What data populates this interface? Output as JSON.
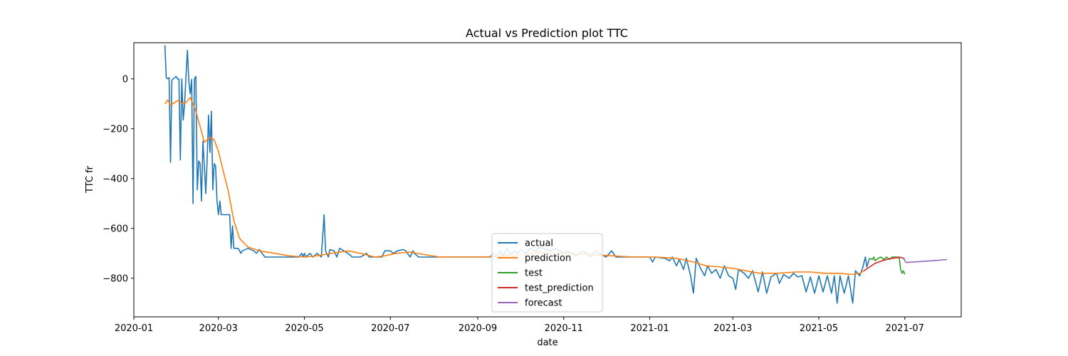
{
  "chart_data": {
    "type": "line",
    "title": "Actual vs Prediction plot TTC",
    "xlabel": "date",
    "ylabel": "TTC fr",
    "x_ticks": [
      "2020-01",
      "2020-03",
      "2020-05",
      "2020-07",
      "2020-09",
      "2020-11",
      "2021-01",
      "2021-03",
      "2021-05",
      "2021-07"
    ],
    "y_ticks": [
      0,
      -200,
      -400,
      -600,
      -800
    ],
    "xlim": [
      "2020-01-01",
      "2021-08-10"
    ],
    "ylim": [
      -955,
      145
    ],
    "grid": false,
    "legend_position": "bottom-center",
    "series": [
      {
        "name": "actual",
        "color": "#1f77b4",
        "points": [
          [
            "2020-01-23",
            135
          ],
          [
            "2020-01-24",
            5
          ],
          [
            "2020-01-25",
            0
          ],
          [
            "2020-01-26",
            5
          ],
          [
            "2020-01-27",
            -335
          ],
          [
            "2020-01-28",
            -5
          ],
          [
            "2020-01-29",
            0
          ],
          [
            "2020-01-31",
            10
          ],
          [
            "2020-02-01",
            0
          ],
          [
            "2020-02-02",
            0
          ],
          [
            "2020-02-03",
            -325
          ],
          [
            "2020-02-04",
            0
          ],
          [
            "2020-02-05",
            -165
          ],
          [
            "2020-02-06",
            -100
          ],
          [
            "2020-02-07",
            10
          ],
          [
            "2020-02-08",
            115
          ],
          [
            "2020-02-09",
            -10
          ],
          [
            "2020-02-10",
            -60
          ],
          [
            "2020-02-11",
            -2
          ],
          [
            "2020-02-12",
            -500
          ],
          [
            "2020-02-13",
            0
          ],
          [
            "2020-02-14",
            10
          ],
          [
            "2020-02-15",
            -445
          ],
          [
            "2020-02-16",
            -330
          ],
          [
            "2020-02-17",
            -340
          ],
          [
            "2020-02-18",
            -490
          ],
          [
            "2020-02-19",
            -250
          ],
          [
            "2020-02-20",
            -350
          ],
          [
            "2020-02-21",
            -460
          ],
          [
            "2020-02-22",
            -330
          ],
          [
            "2020-02-23",
            -145
          ],
          [
            "2020-02-24",
            -295
          ],
          [
            "2020-02-25",
            -130
          ],
          [
            "2020-02-26",
            -445
          ],
          [
            "2020-02-27",
            -340
          ],
          [
            "2020-02-28",
            -350
          ],
          [
            "2020-02-29",
            -490
          ],
          [
            "2020-03-01",
            -545
          ],
          [
            "2020-03-02",
            -490
          ],
          [
            "2020-03-03",
            -545
          ],
          [
            "2020-03-06",
            -545
          ],
          [
            "2020-03-09",
            -545
          ],
          [
            "2020-03-10",
            -680
          ],
          [
            "2020-03-11",
            -590
          ],
          [
            "2020-03-12",
            -680
          ],
          [
            "2020-03-15",
            -680
          ],
          [
            "2020-03-16",
            -690
          ],
          [
            "2020-03-17",
            -700
          ],
          [
            "2020-03-18",
            -690
          ],
          [
            "2020-03-22",
            -680
          ],
          [
            "2020-03-26",
            -690
          ],
          [
            "2020-03-28",
            -700
          ],
          [
            "2020-03-30",
            -685
          ],
          [
            "2020-04-01",
            -700
          ],
          [
            "2020-04-03",
            -715
          ],
          [
            "2020-04-10",
            -715
          ],
          [
            "2020-04-20",
            -715
          ],
          [
            "2020-04-27",
            -715
          ],
          [
            "2020-04-29",
            -700
          ],
          [
            "2020-04-30",
            -715
          ],
          [
            "2020-05-01",
            -700
          ],
          [
            "2020-05-02",
            -715
          ],
          [
            "2020-05-05",
            -700
          ],
          [
            "2020-05-07",
            -715
          ],
          [
            "2020-05-10",
            -700
          ],
          [
            "2020-05-13",
            -715
          ],
          [
            "2020-05-15",
            -545
          ],
          [
            "2020-05-16",
            -690
          ],
          [
            "2020-05-18",
            -715
          ],
          [
            "2020-05-19",
            -685
          ],
          [
            "2020-05-22",
            -690
          ],
          [
            "2020-05-24",
            -715
          ],
          [
            "2020-05-26",
            -680
          ],
          [
            "2020-05-29",
            -690
          ],
          [
            "2020-06-01",
            -700
          ],
          [
            "2020-06-04",
            -715
          ],
          [
            "2020-06-10",
            -715
          ],
          [
            "2020-06-14",
            -700
          ],
          [
            "2020-06-16",
            -715
          ],
          [
            "2020-06-25",
            -715
          ],
          [
            "2020-06-27",
            -690
          ],
          [
            "2020-07-01",
            -690
          ],
          [
            "2020-07-03",
            -700
          ],
          [
            "2020-07-06",
            -690
          ],
          [
            "2020-07-10",
            -685
          ],
          [
            "2020-07-12",
            -690
          ],
          [
            "2020-07-15",
            -715
          ],
          [
            "2020-07-17",
            -690
          ],
          [
            "2020-07-18",
            -700
          ],
          [
            "2020-07-21",
            -715
          ],
          [
            "2020-08-01",
            -715
          ],
          [
            "2020-08-20",
            -715
          ],
          [
            "2020-09-01",
            -715
          ],
          [
            "2020-09-10",
            -715
          ],
          [
            "2020-09-12",
            -700
          ],
          [
            "2020-09-14",
            -715
          ],
          [
            "2020-09-17",
            -690
          ],
          [
            "2020-09-19",
            -710
          ],
          [
            "2020-09-22",
            -680
          ],
          [
            "2020-09-24",
            -705
          ],
          [
            "2020-09-27",
            -690
          ],
          [
            "2020-09-29",
            -700
          ],
          [
            "2020-10-02",
            -685
          ],
          [
            "2020-10-05",
            -700
          ],
          [
            "2020-10-08",
            -680
          ],
          [
            "2020-10-12",
            -690
          ],
          [
            "2020-10-15",
            -675
          ],
          [
            "2020-10-19",
            -685
          ],
          [
            "2020-10-23",
            -690
          ],
          [
            "2020-10-26",
            -680
          ],
          [
            "2020-10-29",
            -690
          ],
          [
            "2020-11-01",
            -700
          ],
          [
            "2020-11-03",
            -690
          ],
          [
            "2020-11-06",
            -700
          ],
          [
            "2020-11-10",
            -710
          ],
          [
            "2020-11-14",
            -690
          ],
          [
            "2020-11-17",
            -700
          ],
          [
            "2020-11-20",
            -715
          ],
          [
            "2020-11-23",
            -690
          ],
          [
            "2020-11-26",
            -700
          ],
          [
            "2020-12-01",
            -715
          ],
          [
            "2020-12-05",
            -690
          ],
          [
            "2020-12-08",
            -715
          ],
          [
            "2020-12-15",
            -715
          ],
          [
            "2020-12-25",
            -715
          ],
          [
            "2021-01-01",
            -715
          ],
          [
            "2021-01-03",
            -735
          ],
          [
            "2021-01-05",
            -715
          ],
          [
            "2021-01-12",
            -720
          ],
          [
            "2021-01-15",
            -730
          ],
          [
            "2021-01-17",
            -715
          ],
          [
            "2021-01-20",
            -750
          ],
          [
            "2021-01-22",
            -725
          ],
          [
            "2021-01-25",
            -765
          ],
          [
            "2021-01-27",
            -720
          ],
          [
            "2021-01-30",
            -790
          ],
          [
            "2021-02-01",
            -860
          ],
          [
            "2021-02-03",
            -720
          ],
          [
            "2021-02-06",
            -760
          ],
          [
            "2021-02-09",
            -790
          ],
          [
            "2021-02-11",
            -750
          ],
          [
            "2021-02-14",
            -780
          ],
          [
            "2021-02-17",
            -765
          ],
          [
            "2021-02-20",
            -800
          ],
          [
            "2021-02-23",
            -750
          ],
          [
            "2021-02-26",
            -790
          ],
          [
            "2021-03-01",
            -800
          ],
          [
            "2021-03-03",
            -845
          ],
          [
            "2021-03-05",
            -765
          ],
          [
            "2021-03-09",
            -780
          ],
          [
            "2021-03-12",
            -800
          ],
          [
            "2021-03-15",
            -770
          ],
          [
            "2021-03-19",
            -855
          ],
          [
            "2021-03-22",
            -775
          ],
          [
            "2021-03-25",
            -860
          ],
          [
            "2021-03-28",
            -795
          ],
          [
            "2021-04-01",
            -780
          ],
          [
            "2021-04-03",
            -820
          ],
          [
            "2021-04-06",
            -785
          ],
          [
            "2021-04-10",
            -800
          ],
          [
            "2021-04-13",
            -780
          ],
          [
            "2021-04-16",
            -795
          ],
          [
            "2021-04-19",
            -790
          ],
          [
            "2021-04-22",
            -855
          ],
          [
            "2021-04-25",
            -795
          ],
          [
            "2021-04-28",
            -860
          ],
          [
            "2021-05-01",
            -790
          ],
          [
            "2021-05-04",
            -855
          ],
          [
            "2021-05-07",
            -790
          ],
          [
            "2021-05-10",
            -860
          ],
          [
            "2021-05-12",
            -790
          ],
          [
            "2021-05-14",
            -900
          ],
          [
            "2021-05-16",
            -790
          ],
          [
            "2021-05-19",
            -860
          ],
          [
            "2021-05-22",
            -790
          ],
          [
            "2021-05-25",
            -900
          ],
          [
            "2021-05-27",
            -770
          ],
          [
            "2021-05-30",
            -790
          ],
          [
            "2021-06-01",
            -760
          ],
          [
            "2021-06-03",
            -715
          ],
          [
            "2021-06-04",
            -755
          ],
          [
            "2021-06-06",
            -720
          ]
        ]
      },
      {
        "name": "prediction",
        "color": "#ff7f0e",
        "points": [
          [
            "2020-01-23",
            -100
          ],
          [
            "2020-01-25",
            -85
          ],
          [
            "2020-01-27",
            -105
          ],
          [
            "2020-01-30",
            -95
          ],
          [
            "2020-02-02",
            -85
          ],
          [
            "2020-02-04",
            -100
          ],
          [
            "2020-02-07",
            -95
          ],
          [
            "2020-02-10",
            -75
          ],
          [
            "2020-02-12",
            -100
          ],
          [
            "2020-02-14",
            -130
          ],
          [
            "2020-02-17",
            -190
          ],
          [
            "2020-02-20",
            -255
          ],
          [
            "2020-02-22",
            -245
          ],
          [
            "2020-02-24",
            -235
          ],
          [
            "2020-02-27",
            -245
          ],
          [
            "2020-03-01",
            -290
          ],
          [
            "2020-03-04",
            -360
          ],
          [
            "2020-03-08",
            -450
          ],
          [
            "2020-03-12",
            -570
          ],
          [
            "2020-03-16",
            -640
          ],
          [
            "2020-03-22",
            -675
          ],
          [
            "2020-03-30",
            -690
          ],
          [
            "2020-04-10",
            -700
          ],
          [
            "2020-04-20",
            -710
          ],
          [
            "2020-05-01",
            -715
          ],
          [
            "2020-05-10",
            -710
          ],
          [
            "2020-05-20",
            -700
          ],
          [
            "2020-06-01",
            -690
          ],
          [
            "2020-06-10",
            -700
          ],
          [
            "2020-06-20",
            -715
          ],
          [
            "2020-06-27",
            -710
          ],
          [
            "2020-07-05",
            -700
          ],
          [
            "2020-07-15",
            -695
          ],
          [
            "2020-07-25",
            -705
          ],
          [
            "2020-08-05",
            -715
          ],
          [
            "2020-08-20",
            -715
          ],
          [
            "2020-09-05",
            -715
          ],
          [
            "2020-09-20",
            -710
          ],
          [
            "2020-10-01",
            -705
          ],
          [
            "2020-10-15",
            -695
          ],
          [
            "2020-10-25",
            -700
          ],
          [
            "2020-11-05",
            -700
          ],
          [
            "2020-11-20",
            -705
          ],
          [
            "2020-12-05",
            -710
          ],
          [
            "2020-12-20",
            -715
          ],
          [
            "2021-01-05",
            -715
          ],
          [
            "2021-01-20",
            -720
          ],
          [
            "2021-02-01",
            -735
          ],
          [
            "2021-02-10",
            -750
          ],
          [
            "2021-02-20",
            -755
          ],
          [
            "2021-03-01",
            -760
          ],
          [
            "2021-03-10",
            -770
          ],
          [
            "2021-03-20",
            -780
          ],
          [
            "2021-04-01",
            -780
          ],
          [
            "2021-04-15",
            -775
          ],
          [
            "2021-04-25",
            -775
          ],
          [
            "2021-05-05",
            -780
          ],
          [
            "2021-05-15",
            -780
          ],
          [
            "2021-05-25",
            -785
          ],
          [
            "2021-05-30",
            -780
          ],
          [
            "2021-06-02",
            -770
          ]
        ]
      },
      {
        "name": "test",
        "color": "#2ca02c",
        "points": [
          [
            "2021-06-06",
            -720
          ],
          [
            "2021-06-08",
            -725
          ],
          [
            "2021-06-09",
            -715
          ],
          [
            "2021-06-10",
            -730
          ],
          [
            "2021-06-12",
            -720
          ],
          [
            "2021-06-14",
            -715
          ],
          [
            "2021-06-16",
            -725
          ],
          [
            "2021-06-18",
            -715
          ],
          [
            "2021-06-20",
            -725
          ],
          [
            "2021-06-22",
            -715
          ],
          [
            "2021-06-25",
            -715
          ],
          [
            "2021-06-27",
            -715
          ],
          [
            "2021-06-28",
            -765
          ],
          [
            "2021-06-29",
            -780
          ],
          [
            "2021-06-30",
            -770
          ],
          [
            "2021-07-01",
            -785
          ]
        ]
      },
      {
        "name": "test_prediction",
        "color": "#d62728",
        "points": [
          [
            "2021-06-02",
            -770
          ],
          [
            "2021-06-06",
            -755
          ],
          [
            "2021-06-10",
            -740
          ],
          [
            "2021-06-15",
            -730
          ],
          [
            "2021-06-20",
            -722
          ],
          [
            "2021-06-25",
            -718
          ],
          [
            "2021-06-28",
            -716
          ],
          [
            "2021-06-30",
            -720
          ],
          [
            "2021-07-01",
            -725
          ]
        ]
      },
      {
        "name": "forecast",
        "color": "#9467bd",
        "points": [
          [
            "2021-06-30",
            -716
          ],
          [
            "2021-07-01",
            -730
          ],
          [
            "2021-07-02",
            -737
          ],
          [
            "2021-07-10",
            -734
          ],
          [
            "2021-07-20",
            -730
          ],
          [
            "2021-07-31",
            -725
          ]
        ]
      }
    ]
  }
}
